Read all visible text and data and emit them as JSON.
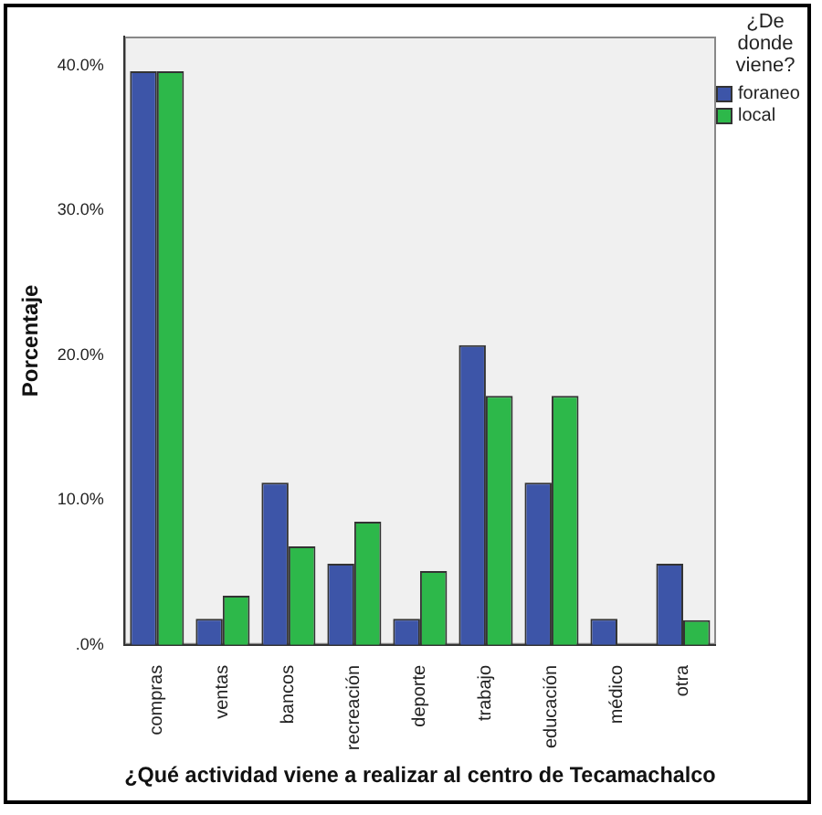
{
  "chart_data": {
    "type": "bar",
    "xlabel": "¿Qué actividad viene a realizar al centro de Tecamachalco",
    "ylabel": "Porcentaje",
    "legend_title": "¿De donde viene?",
    "categories": [
      "compras",
      "ventas",
      "bancos",
      "recreación",
      "deporte",
      "trabajo",
      "educación",
      "médico",
      "otra"
    ],
    "series": [
      {
        "name": "foraneo",
        "color": "#3d55a8",
        "values": [
          39.6,
          1.8,
          11.2,
          5.6,
          1.8,
          20.7,
          11.2,
          1.8,
          5.6
        ]
      },
      {
        "name": "local",
        "color": "#2db84a",
        "values": [
          39.6,
          3.4,
          6.8,
          8.5,
          5.1,
          17.2,
          17.2,
          0,
          1.7
        ]
      }
    ],
    "ylim": [
      0,
      42
    ],
    "yticks": [
      {
        "value": 0,
        "label": ".0%"
      },
      {
        "value": 10,
        "label": "10.0%"
      },
      {
        "value": 20,
        "label": "20.0%"
      },
      {
        "value": 30,
        "label": "30.0%"
      },
      {
        "value": 40,
        "label": "40.0%"
      }
    ],
    "grid": false,
    "legend": "top right"
  }
}
